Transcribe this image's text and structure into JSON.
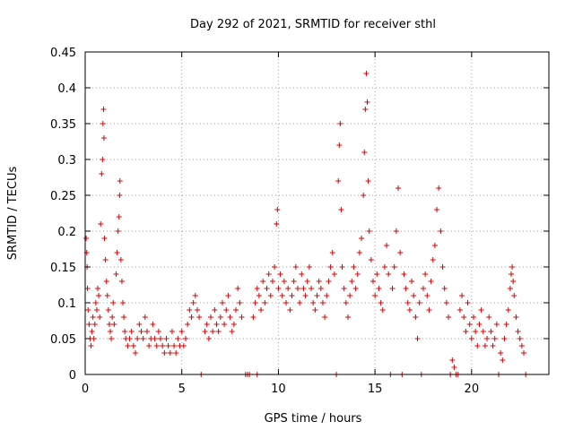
{
  "chart_data": {
    "type": "scatter",
    "title": "Day 292 of 2021, SRMTID for receiver sthl",
    "xlabel": "GPS time / hours",
    "ylabel": "SRMTID / TECUs",
    "xlim": [
      0,
      24
    ],
    "ylim": [
      0,
      0.45
    ],
    "xticks": [
      0,
      5,
      10,
      15,
      20
    ],
    "yticks": [
      0,
      0.05,
      0.1,
      0.15,
      0.2,
      0.25,
      0.3,
      0.35,
      0.4,
      0.45
    ],
    "xtick_labels": [
      "0",
      "5",
      "10",
      "15",
      "20"
    ],
    "ytick_labels": [
      "0",
      "0.05",
      "0.1",
      "0.15",
      "0.2",
      "0.25",
      "0.3",
      "0.35",
      "0.4",
      "0.45"
    ],
    "grid": true,
    "marker": "+",
    "color": "#e00000",
    "series": [
      {
        "name": "SRMTID",
        "points": [
          [
            0.05,
            0.19
          ],
          [
            0.08,
            0.17
          ],
          [
            0.1,
            0.15
          ],
          [
            0.12,
            0.12
          ],
          [
            0.15,
            0.09
          ],
          [
            0.2,
            0.07
          ],
          [
            0.25,
            0.05
          ],
          [
            0.3,
            0.04
          ],
          [
            0.35,
            0.06
          ],
          [
            0.4,
            0.08
          ],
          [
            0.45,
            0.05
          ],
          [
            0.5,
            0.07
          ],
          [
            0.55,
            0.1
          ],
          [
            0.6,
            0.09
          ],
          [
            0.65,
            0.12
          ],
          [
            0.7,
            0.11
          ],
          [
            0.75,
            0.08
          ],
          [
            0.8,
            0.21
          ],
          [
            0.85,
            0.28
          ],
          [
            0.9,
            0.3
          ],
          [
            0.92,
            0.35
          ],
          [
            0.95,
            0.37
          ],
          [
            0.97,
            0.33
          ],
          [
            1.0,
            0.19
          ],
          [
            1.05,
            0.16
          ],
          [
            1.1,
            0.13
          ],
          [
            1.15,
            0.11
          ],
          [
            1.2,
            0.09
          ],
          [
            1.25,
            0.07
          ],
          [
            1.3,
            0.06
          ],
          [
            1.35,
            0.05
          ],
          [
            1.4,
            0.08
          ],
          [
            1.45,
            0.1
          ],
          [
            1.5,
            0.07
          ],
          [
            1.6,
            0.14
          ],
          [
            1.65,
            0.17
          ],
          [
            1.7,
            0.2
          ],
          [
            1.75,
            0.22
          ],
          [
            1.78,
            0.25
          ],
          [
            1.8,
            0.27
          ],
          [
            1.85,
            0.16
          ],
          [
            1.9,
            0.13
          ],
          [
            1.95,
            0.1
          ],
          [
            2.0,
            0.08
          ],
          [
            2.05,
            0.06
          ],
          [
            2.1,
            0.05
          ],
          [
            2.2,
            0.04
          ],
          [
            2.3,
            0.05
          ],
          [
            2.4,
            0.06
          ],
          [
            2.5,
            0.04
          ],
          [
            2.6,
            0.03
          ],
          [
            2.7,
            0.05
          ],
          [
            2.8,
            0.07
          ],
          [
            2.9,
            0.06
          ],
          [
            3.0,
            0.05
          ],
          [
            3.1,
            0.08
          ],
          [
            3.2,
            0.06
          ],
          [
            3.3,
            0.04
          ],
          [
            3.4,
            0.05
          ],
          [
            3.5,
            0.07
          ],
          [
            3.6,
            0.05
          ],
          [
            3.7,
            0.04
          ],
          [
            3.8,
            0.06
          ],
          [
            3.9,
            0.05
          ],
          [
            4.0,
            0.04
          ],
          [
            4.1,
            0.03
          ],
          [
            4.2,
            0.05
          ],
          [
            4.3,
            0.04
          ],
          [
            4.4,
            0.03
          ],
          [
            4.5,
            0.06
          ],
          [
            4.6,
            0.04
          ],
          [
            4.7,
            0.03
          ],
          [
            4.8,
            0.05
          ],
          [
            4.9,
            0.04
          ],
          [
            5.0,
            0.06
          ],
          [
            5.1,
            0.04
          ],
          [
            5.2,
            0.05
          ],
          [
            5.3,
            0.07
          ],
          [
            5.4,
            0.09
          ],
          [
            5.5,
            0.08
          ],
          [
            5.6,
            0.1
          ],
          [
            5.7,
            0.11
          ],
          [
            5.8,
            0.09
          ],
          [
            5.9,
            0.08
          ],
          [
            6.0,
            0.0
          ],
          [
            6.2,
            0.06
          ],
          [
            6.3,
            0.07
          ],
          [
            6.4,
            0.05
          ],
          [
            6.5,
            0.08
          ],
          [
            6.6,
            0.06
          ],
          [
            6.7,
            0.09
          ],
          [
            6.8,
            0.07
          ],
          [
            6.9,
            0.06
          ],
          [
            7.0,
            0.08
          ],
          [
            7.1,
            0.1
          ],
          [
            7.2,
            0.07
          ],
          [
            7.3,
            0.09
          ],
          [
            7.4,
            0.11
          ],
          [
            7.5,
            0.08
          ],
          [
            7.6,
            0.06
          ],
          [
            7.7,
            0.07
          ],
          [
            7.8,
            0.09
          ],
          [
            7.9,
            0.12
          ],
          [
            8.0,
            0.1
          ],
          [
            8.1,
            0.08
          ],
          [
            8.3,
            0.0
          ],
          [
            8.4,
            0.0
          ],
          [
            8.5,
            0.0
          ],
          [
            8.9,
            0.0
          ],
          [
            8.7,
            0.08
          ],
          [
            8.8,
            0.1
          ],
          [
            8.9,
            0.12
          ],
          [
            9.0,
            0.11
          ],
          [
            9.1,
            0.09
          ],
          [
            9.2,
            0.13
          ],
          [
            9.3,
            0.1
          ],
          [
            9.4,
            0.12
          ],
          [
            9.5,
            0.14
          ],
          [
            9.6,
            0.11
          ],
          [
            9.7,
            0.13
          ],
          [
            9.8,
            0.15
          ],
          [
            9.9,
            0.21
          ],
          [
            9.95,
            0.23
          ],
          [
            10.0,
            0.12
          ],
          [
            10.1,
            0.14
          ],
          [
            10.2,
            0.11
          ],
          [
            10.3,
            0.13
          ],
          [
            10.4,
            0.1
          ],
          [
            10.5,
            0.12
          ],
          [
            10.6,
            0.09
          ],
          [
            10.7,
            0.11
          ],
          [
            10.8,
            0.13
          ],
          [
            10.9,
            0.15
          ],
          [
            11.0,
            0.12
          ],
          [
            11.1,
            0.1
          ],
          [
            11.2,
            0.14
          ],
          [
            11.3,
            0.12
          ],
          [
            11.4,
            0.11
          ],
          [
            11.5,
            0.13
          ],
          [
            11.6,
            0.15
          ],
          [
            11.7,
            0.12
          ],
          [
            11.8,
            0.1
          ],
          [
            11.9,
            0.09
          ],
          [
            12.0,
            0.11
          ],
          [
            12.1,
            0.13
          ],
          [
            12.2,
            0.12
          ],
          [
            12.3,
            0.1
          ],
          [
            12.4,
            0.08
          ],
          [
            12.5,
            0.11
          ],
          [
            12.6,
            0.13
          ],
          [
            12.7,
            0.15
          ],
          [
            12.8,
            0.17
          ],
          [
            12.9,
            0.14
          ],
          [
            13.0,
            0.0
          ],
          [
            13.1,
            0.27
          ],
          [
            13.15,
            0.32
          ],
          [
            13.2,
            0.35
          ],
          [
            13.25,
            0.23
          ],
          [
            13.3,
            0.15
          ],
          [
            13.4,
            0.12
          ],
          [
            13.5,
            0.1
          ],
          [
            13.6,
            0.08
          ],
          [
            13.7,
            0.11
          ],
          [
            13.8,
            0.13
          ],
          [
            13.9,
            0.15
          ],
          [
            14.0,
            0.12
          ],
          [
            14.1,
            0.14
          ],
          [
            14.2,
            0.17
          ],
          [
            14.3,
            0.19
          ],
          [
            14.4,
            0.25
          ],
          [
            14.45,
            0.31
          ],
          [
            14.5,
            0.37
          ],
          [
            14.55,
            0.42
          ],
          [
            14.6,
            0.38
          ],
          [
            14.65,
            0.27
          ],
          [
            14.7,
            0.2
          ],
          [
            14.8,
            0.16
          ],
          [
            14.9,
            0.13
          ],
          [
            15.0,
            0.11
          ],
          [
            15.1,
            0.14
          ],
          [
            15.2,
            0.12
          ],
          [
            15.3,
            0.1
          ],
          [
            15.4,
            0.09
          ],
          [
            15.5,
            0.15
          ],
          [
            15.6,
            0.18
          ],
          [
            15.7,
            0.14
          ],
          [
            15.8,
            0.0
          ],
          [
            15.9,
            0.12
          ],
          [
            16.0,
            0.15
          ],
          [
            16.1,
            0.2
          ],
          [
            16.2,
            0.26
          ],
          [
            16.3,
            0.17
          ],
          [
            16.4,
            0.0
          ],
          [
            16.5,
            0.14
          ],
          [
            16.6,
            0.12
          ],
          [
            16.7,
            0.1
          ],
          [
            16.8,
            0.09
          ],
          [
            16.9,
            0.13
          ],
          [
            17.0,
            0.11
          ],
          [
            17.1,
            0.08
          ],
          [
            17.2,
            0.05
          ],
          [
            17.3,
            0.1
          ],
          [
            17.4,
            0.0
          ],
          [
            17.5,
            0.12
          ],
          [
            17.6,
            0.14
          ],
          [
            17.7,
            0.11
          ],
          [
            17.8,
            0.09
          ],
          [
            17.9,
            0.13
          ],
          [
            18.0,
            0.16
          ],
          [
            18.1,
            0.18
          ],
          [
            18.2,
            0.23
          ],
          [
            18.3,
            0.26
          ],
          [
            18.4,
            0.2
          ],
          [
            18.5,
            0.15
          ],
          [
            18.6,
            0.12
          ],
          [
            18.7,
            0.1
          ],
          [
            18.8,
            0.08
          ],
          [
            18.9,
            0.0
          ],
          [
            19.0,
            0.02
          ],
          [
            19.1,
            0.01
          ],
          [
            19.2,
            0.0
          ],
          [
            19.3,
            0.0
          ],
          [
            19.4,
            0.09
          ],
          [
            19.5,
            0.11
          ],
          [
            19.6,
            0.08
          ],
          [
            19.7,
            0.06
          ],
          [
            19.8,
            0.1
          ],
          [
            19.9,
            0.07
          ],
          [
            20.0,
            0.05
          ],
          [
            20.1,
            0.08
          ],
          [
            20.2,
            0.06
          ],
          [
            20.3,
            0.04
          ],
          [
            20.4,
            0.07
          ],
          [
            20.5,
            0.09
          ],
          [
            20.6,
            0.06
          ],
          [
            20.7,
            0.04
          ],
          [
            20.8,
            0.05
          ],
          [
            20.9,
            0.08
          ],
          [
            21.0,
            0.06
          ],
          [
            21.1,
            0.04
          ],
          [
            21.2,
            0.05
          ],
          [
            21.3,
            0.07
          ],
          [
            21.4,
            0.0
          ],
          [
            21.5,
            0.03
          ],
          [
            21.6,
            0.02
          ],
          [
            21.7,
            0.05
          ],
          [
            21.8,
            0.07
          ],
          [
            21.9,
            0.09
          ],
          [
            22.0,
            0.12
          ],
          [
            22.05,
            0.14
          ],
          [
            22.1,
            0.15
          ],
          [
            22.15,
            0.13
          ],
          [
            22.2,
            0.11
          ],
          [
            22.3,
            0.08
          ],
          [
            22.4,
            0.06
          ],
          [
            22.5,
            0.05
          ],
          [
            22.6,
            0.04
          ],
          [
            22.7,
            0.03
          ],
          [
            22.8,
            0.0
          ]
        ]
      }
    ]
  }
}
